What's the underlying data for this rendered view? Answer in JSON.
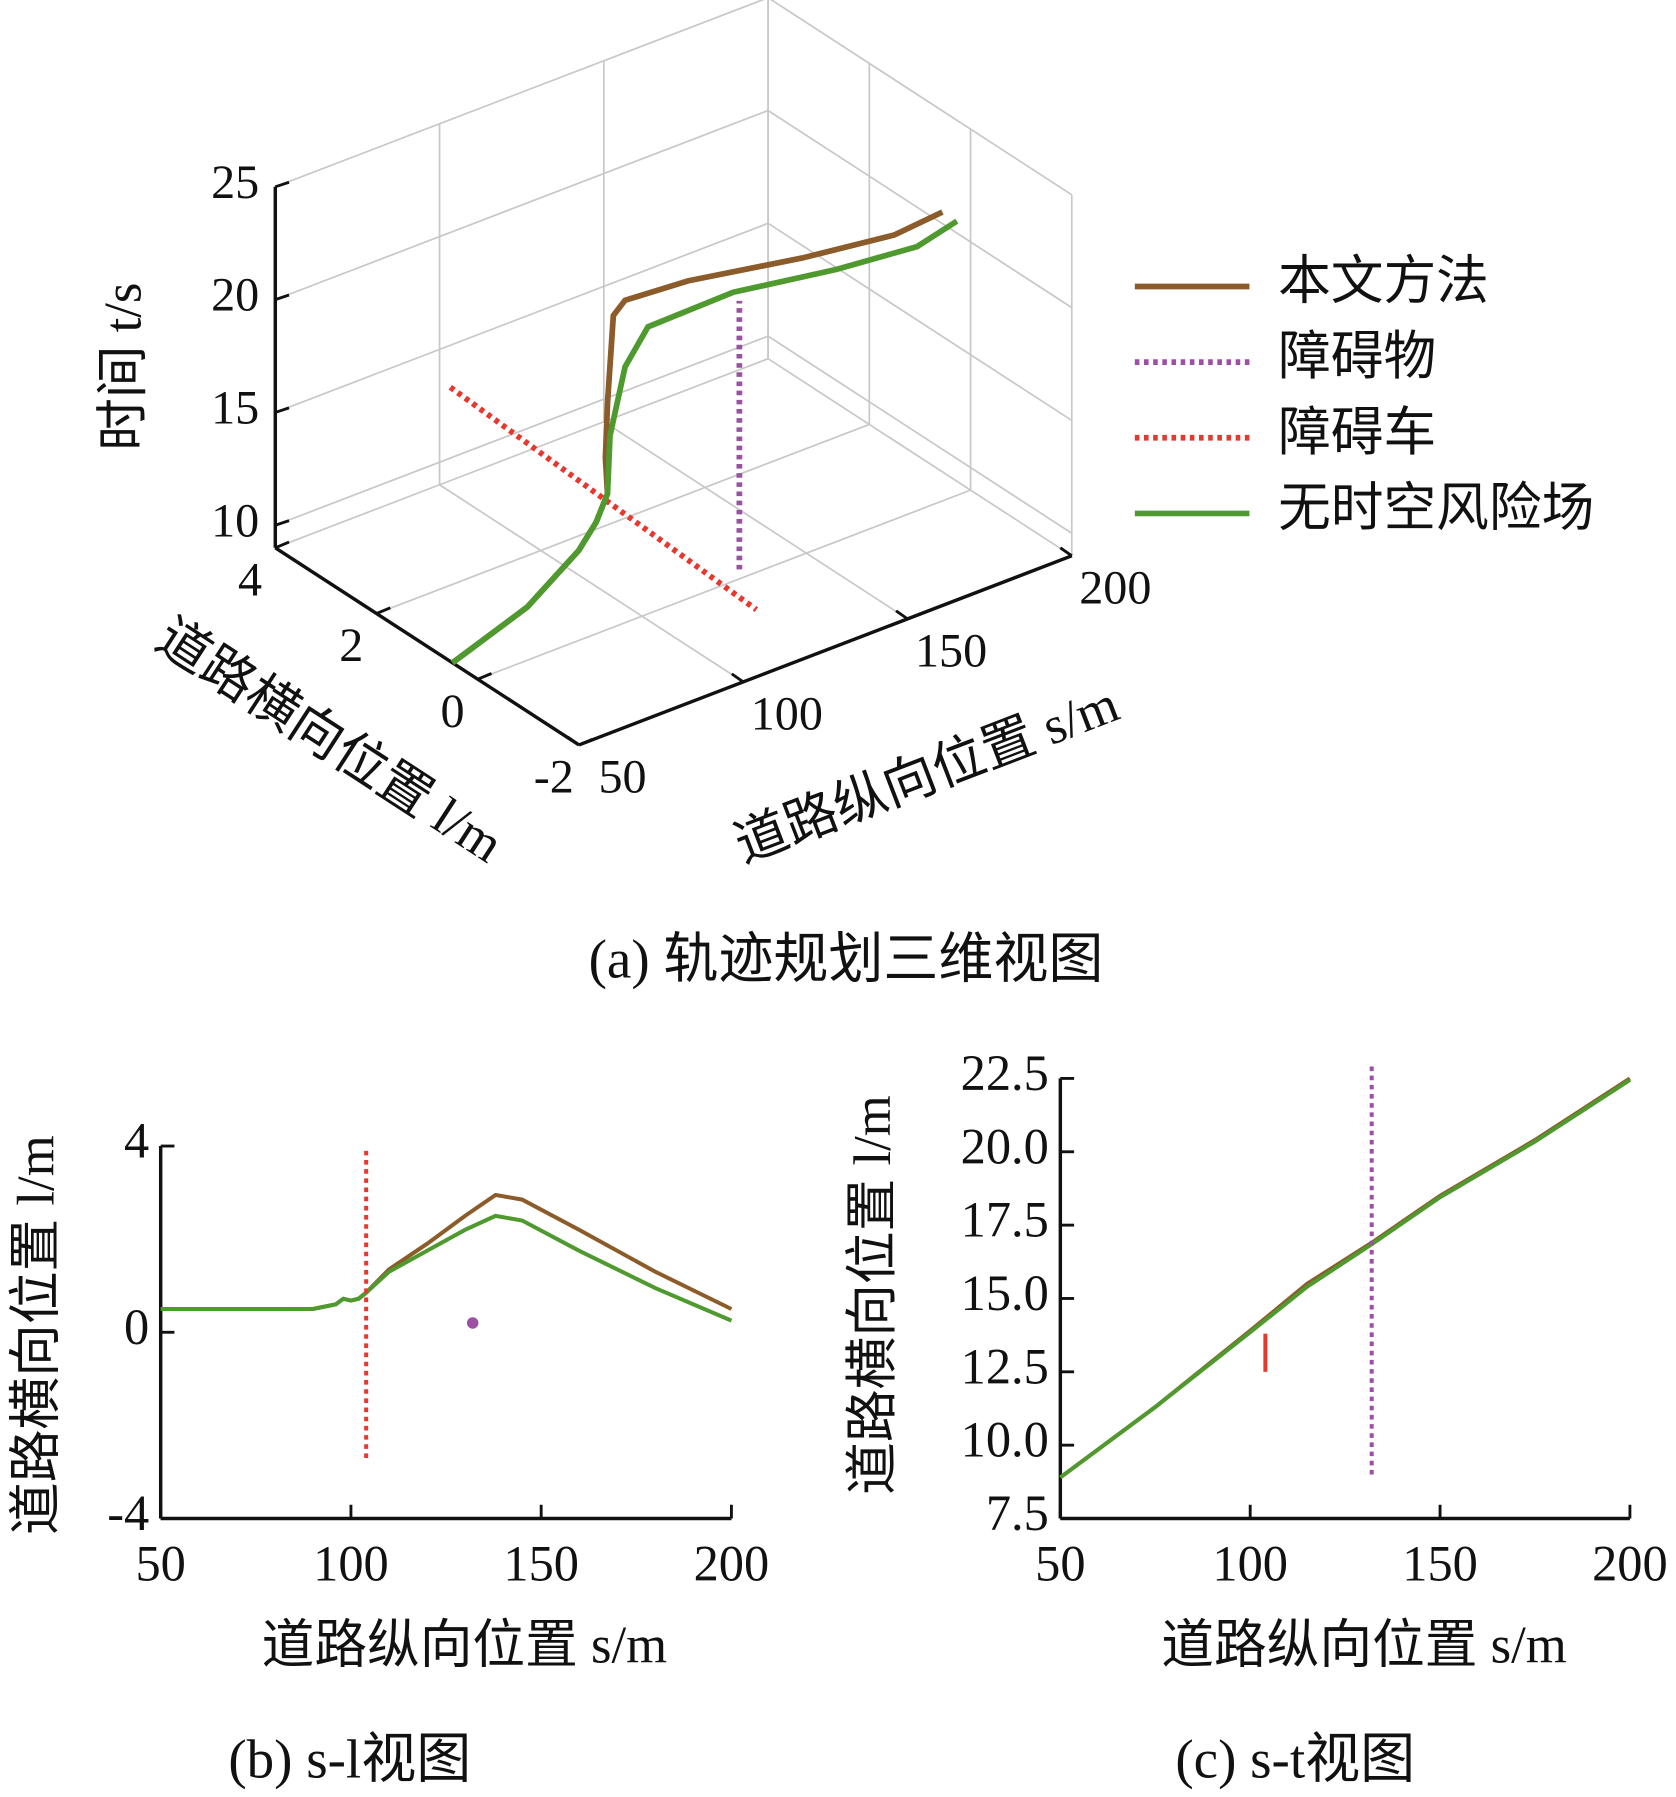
{
  "chart_data": [
    {
      "type": "line3d",
      "title": "(a) 轨迹规划三维视图",
      "xlabel": "道路纵向位置 s/m",
      "ylabel": "道路横向位置 l/m",
      "zlabel": "时间 t/s",
      "xlim": [
        50,
        200
      ],
      "ylim": [
        -2,
        4
      ],
      "zlim": [
        9,
        25
      ],
      "xticks": [
        50,
        100,
        150,
        200
      ],
      "yticks": [
        -2,
        0,
        2,
        4
      ],
      "zticks": [
        10,
        15,
        20,
        25
      ],
      "grid": true,
      "legend": "right",
      "series": [
        {
          "name": "本文方法",
          "color": "#8c5b2a",
          "style": "solid",
          "x": [
            50,
            72.8,
            90,
            98.4,
            104.9,
            105.8,
            108,
            111.3,
            114.7,
            130.5,
            155.1,
            174.1,
            184.8
          ],
          "y": [
            0.5,
            0.5,
            0.6,
            0.8,
            1.0,
            1.1,
            1.2,
            1.3,
            1.29,
            1.07,
            0.41,
            -0.17,
            -0.43
          ],
          "values": [
            9,
            10.2,
            11.6,
            12.1,
            12.7,
            14.1,
            16.3,
            19.8,
            20.3,
            20.6,
            21.2,
            22,
            22.8
          ]
        },
        {
          "name": "障碍物",
          "color": "#9b4fa5",
          "style": "dotted",
          "x": [
            132.4,
            132.4
          ],
          "y": [
            0.18,
            0.18
          ],
          "values": [
            9,
            20.9
          ]
        },
        {
          "name": "障碍车",
          "color": "#e8382e",
          "style": "dotted",
          "x": [
            102.2,
            95.2
          ],
          "y": [
            3.93,
            -2.57
          ],
          "values": [
            13.3,
            13.3
          ]
        },
        {
          "name": "无时空风险场",
          "color": "#4f9a2e",
          "style": "solid",
          "x": [
            50,
            72.8,
            90,
            98.4,
            104.9,
            107.2,
            110.4,
            114.6,
            137.8,
            158.3,
            175.1,
            184.9
          ],
          "y": [
            0.5,
            0.5,
            0.6,
            0.8,
            1.0,
            1.1,
            1.01,
            0.83,
            0.65,
            -0.06,
            -0.56,
            -0.71
          ],
          "values": [
            9,
            10.2,
            11.6,
            12.1,
            12.7,
            15,
            18,
            19.8,
            20.3,
            21.2,
            22,
            22.8
          ]
        }
      ]
    },
    {
      "type": "line",
      "title": "(b) s-l视图",
      "xlabel": "道路纵向位置 s/m",
      "ylabel": "道路横向位置 l/m",
      "xlim": [
        50,
        200
      ],
      "ylim": [
        -4,
        4
      ],
      "xticks": [
        50,
        100,
        150,
        200
      ],
      "yticks": [
        -4,
        0,
        4
      ],
      "series": [
        {
          "color": "#8c5b2a",
          "style": "solid",
          "x": [
            50,
            70,
            90,
            96,
            98,
            100,
            102,
            104,
            110,
            120,
            130,
            138,
            145,
            160,
            180,
            200
          ],
          "values": [
            0.5,
            0.5,
            0.5,
            0.6,
            0.72,
            0.68,
            0.72,
            0.85,
            1.35,
            1.9,
            2.5,
            2.95,
            2.85,
            2.2,
            1.3,
            0.5
          ]
        },
        {
          "color": "#4f9a2e",
          "style": "solid",
          "x": [
            50,
            70,
            90,
            96,
            98,
            100,
            102,
            104,
            110,
            120,
            130,
            138,
            145,
            160,
            180,
            200
          ],
          "values": [
            0.5,
            0.5,
            0.5,
            0.6,
            0.72,
            0.68,
            0.72,
            0.85,
            1.3,
            1.75,
            2.2,
            2.5,
            2.4,
            1.75,
            0.95,
            0.25
          ]
        },
        {
          "color": "#e8382e",
          "style": "dotted",
          "x": [
            104,
            104
          ],
          "values": [
            -2.7,
            3.9
          ]
        },
        {
          "color": "#9b4fa5",
          "style": "point",
          "x": [
            132
          ],
          "values": [
            0.2
          ]
        }
      ]
    },
    {
      "type": "line",
      "title": "(c) s-t视图",
      "xlabel": "道路纵向位置 s/m",
      "ylabel": "道路横向位置 l/m",
      "xlim": [
        50,
        200
      ],
      "ylim": [
        7.5,
        22.5
      ],
      "xticks": [
        50,
        100,
        150,
        200
      ],
      "yticks": [
        7.5,
        {
          "value": 10,
          "label": "10.0"
        },
        12.5,
        {
          "value": 15,
          "label": "15.0"
        },
        17.5,
        {
          "value": 20,
          "label": "20.0"
        },
        22.5
      ],
      "series": [
        {
          "color": "#8c5b2a",
          "style": "solid",
          "x": [
            50,
            75,
            100,
            115,
            132,
            150,
            175,
            200
          ],
          "values": [
            8.9,
            11.3,
            13.9,
            15.5,
            16.9,
            18.5,
            20.4,
            22.5
          ]
        },
        {
          "color": "#4f9a2e",
          "style": "solid",
          "x": [
            50,
            75,
            100,
            115,
            132,
            150,
            175,
            200
          ],
          "values": [
            8.9,
            11.3,
            13.85,
            15.4,
            16.85,
            18.45,
            20.35,
            22.45
          ]
        },
        {
          "color": "#9b4fa5",
          "style": "dotted",
          "x": [
            132,
            132
          ],
          "values": [
            9,
            23
          ]
        },
        {
          "color": "#e8382e",
          "style": "solid",
          "x": [
            104,
            104
          ],
          "values": [
            12.5,
            13.8
          ]
        }
      ]
    }
  ]
}
